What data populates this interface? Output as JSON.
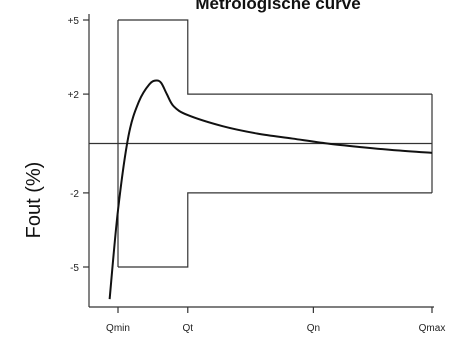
{
  "chart_data": {
    "type": "line",
    "title": "Metrologische curve",
    "xlabel": "",
    "ylabel": "Fout (%)",
    "x_ticks": [
      "Qmin",
      "Qt",
      "Qn",
      "Qmax"
    ],
    "x_tick_values": [
      0,
      1,
      2.8,
      4.5
    ],
    "xlim": [
      -0.2,
      4.5
    ],
    "y_ticks": [
      "+5",
      "+2",
      "-2",
      "-5"
    ],
    "y_tick_values": [
      5,
      2,
      -2,
      -5
    ],
    "ylim": [
      -6.2,
      5.2
    ],
    "grid": false,
    "reference_line": {
      "y": 0.0
    },
    "tolerance_envelope": {
      "upper": [
        {
          "x": 0,
          "y": 5
        },
        {
          "x": 1,
          "y": 5
        },
        {
          "x": 1,
          "y": 2
        },
        {
          "x": 4.5,
          "y": 2
        }
      ],
      "lower": [
        {
          "x": 0,
          "y": -5
        },
        {
          "x": 1,
          "y": -5
        },
        {
          "x": 1,
          "y": -2
        },
        {
          "x": 4.5,
          "y": -2
        }
      ],
      "qmin_line_y": [
        -5,
        5
      ]
    },
    "series": [
      {
        "values": [
          {
            "x": -0.12,
            "y": -6.3
          },
          {
            "x": 0.0,
            "y": -2.7
          },
          {
            "x": 0.15,
            "y": 0.3
          },
          {
            "x": 0.3,
            "y": 1.7
          },
          {
            "x": 0.45,
            "y": 2.4
          },
          {
            "x": 0.55,
            "y": 2.55
          },
          {
            "x": 0.62,
            "y": 2.45
          },
          {
            "x": 0.7,
            "y": 2.0
          },
          {
            "x": 0.8,
            "y": 1.5
          },
          {
            "x": 1.0,
            "y": 1.15
          },
          {
            "x": 1.5,
            "y": 0.7
          },
          {
            "x": 2.0,
            "y": 0.4
          },
          {
            "x": 2.5,
            "y": 0.2
          },
          {
            "x": 3.0,
            "y": 0.0
          },
          {
            "x": 3.5,
            "y": -0.15
          },
          {
            "x": 4.0,
            "y": -0.28
          },
          {
            "x": 4.5,
            "y": -0.38
          }
        ]
      }
    ]
  }
}
